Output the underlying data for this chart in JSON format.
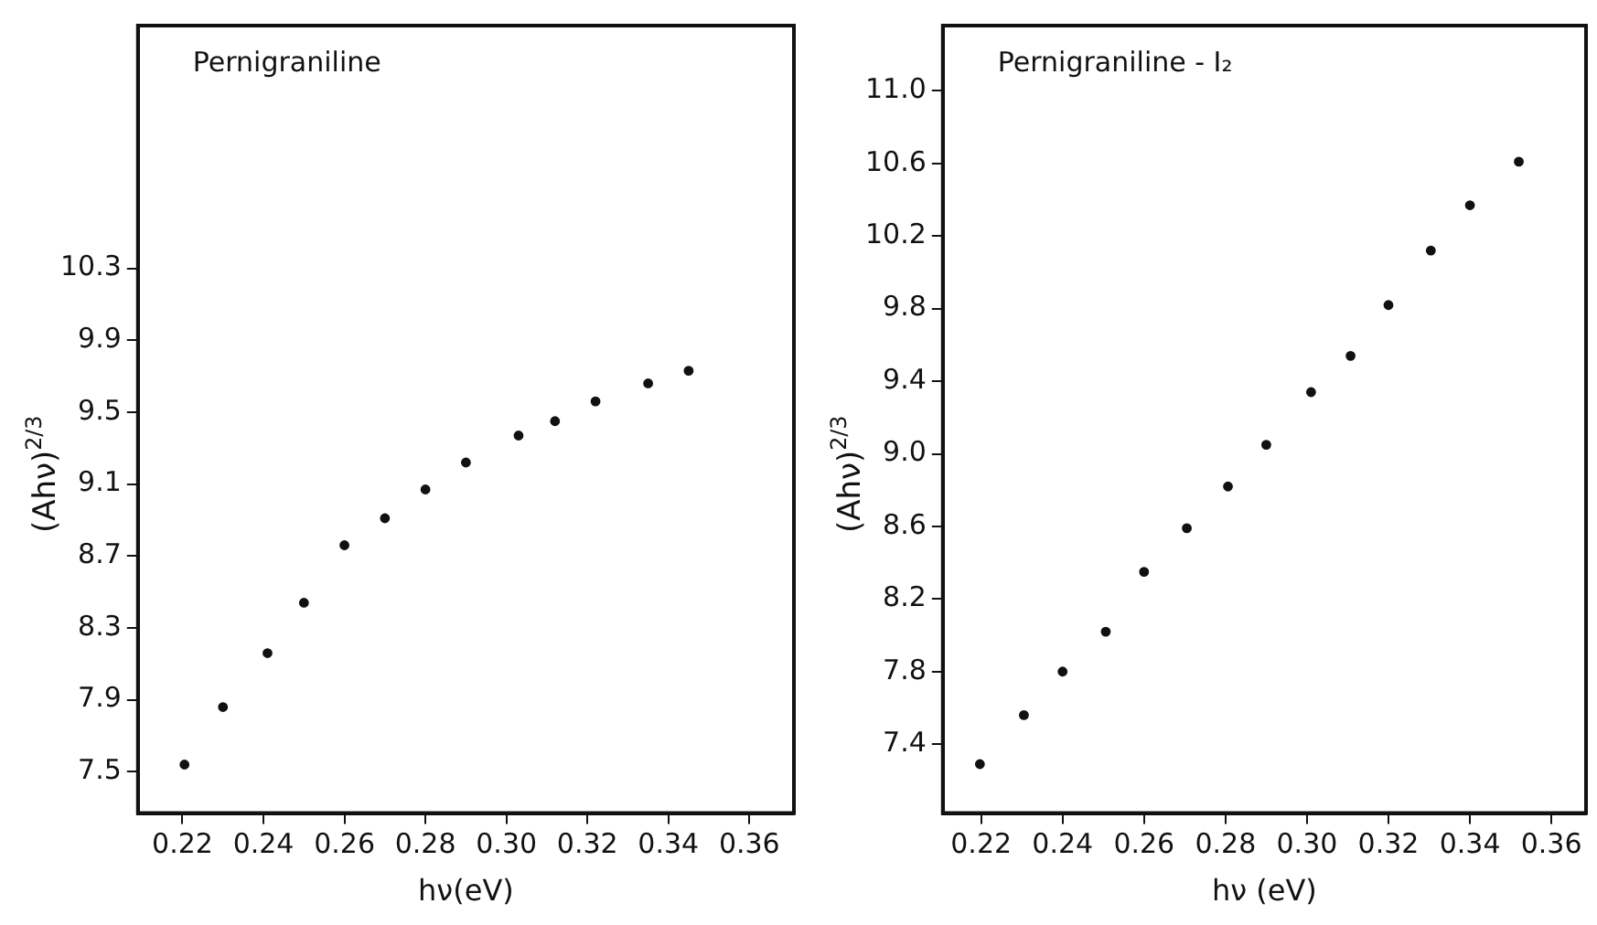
{
  "chart_data": [
    {
      "type": "scatter",
      "title": "Pernigraniline",
      "xlabel": "hν(eV)",
      "ylabel": "(Ahν)$^{2/3}$",
      "marker": "circle",
      "grid": false,
      "legend": false,
      "x": [
        0.2205,
        0.23,
        0.241,
        0.25,
        0.26,
        0.27,
        0.28,
        0.29,
        0.303,
        0.312,
        0.322,
        0.335,
        0.345
      ],
      "series": [
        {
          "color": "#111111",
          "values": [
            7.54,
            7.86,
            8.16,
            8.44,
            8.76,
            8.91,
            9.07,
            9.22,
            9.37,
            9.45,
            9.56,
            9.66,
            9.73
          ]
        }
      ],
      "xlim": [
        0.209,
        0.371
      ],
      "ylim": [
        7.27,
        11.65
      ],
      "xticks": [
        0.22,
        0.24,
        0.26,
        0.28,
        {
          "value": 0.3,
          "label": "0.30"
        },
        0.32,
        0.34,
        0.36
      ],
      "yticks": [
        7.5,
        7.9,
        8.3,
        8.7,
        9.1,
        9.5,
        9.9,
        10.3
      ]
    },
    {
      "type": "scatter",
      "title": "Pernigraniline - I₂",
      "xlabel": "hν (eV)",
      "ylabel": "(Ahν)$^{2/3}$",
      "marker": "circle",
      "grid": false,
      "legend": false,
      "x": [
        0.2197,
        0.2305,
        0.24,
        0.2506,
        0.26,
        0.2705,
        0.2806,
        0.29,
        0.301,
        0.3107,
        0.32,
        0.3304,
        0.34,
        0.352
      ],
      "series": [
        {
          "color": "#111111",
          "values": [
            7.29,
            7.56,
            7.8,
            8.02,
            8.35,
            8.59,
            8.82,
            9.05,
            9.34,
            9.54,
            9.82,
            10.12,
            10.37,
            10.61
          ]
        }
      ],
      "xlim": [
        0.2106,
        0.3685
      ],
      "ylim": [
        7.02,
        11.36
      ],
      "xticks": [
        0.22,
        0.24,
        0.26,
        0.28,
        {
          "value": 0.3,
          "label": "0.30"
        },
        0.32,
        0.34,
        0.36
      ],
      "yticks": [
        7.4,
        7.8,
        8.2,
        8.6,
        {
          "value": 9,
          "label": "9.0"
        },
        9.4,
        9.8,
        10.2,
        10.6,
        {
          "value": 11,
          "label": "11.0"
        }
      ]
    }
  ]
}
